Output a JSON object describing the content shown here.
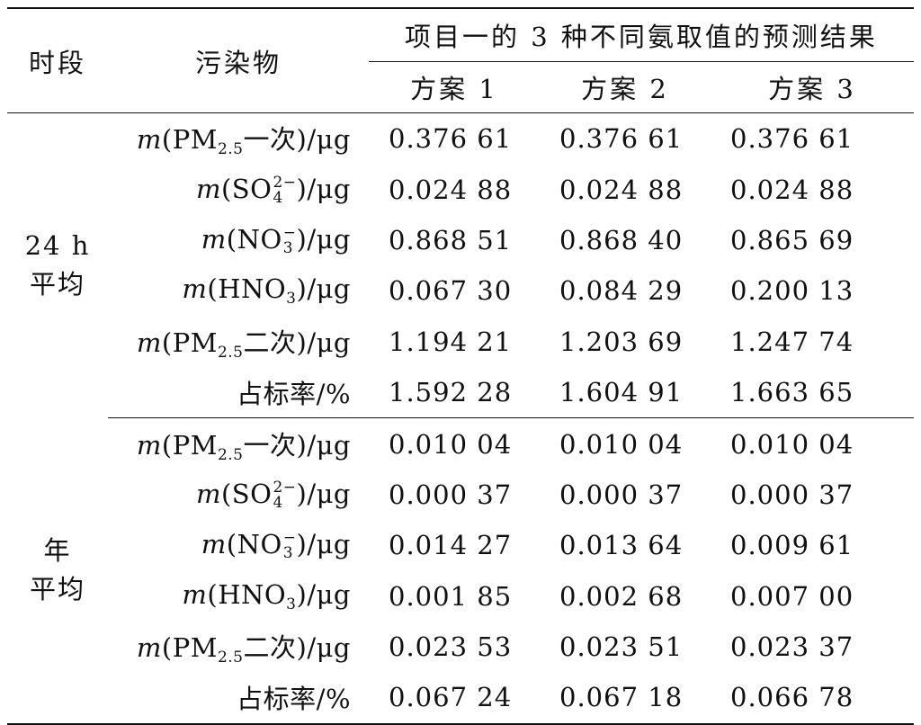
{
  "table": {
    "header": {
      "period": "时段",
      "pollutant": "污染物",
      "group_title": "项目一的 3 种不同氨取值的预测结果",
      "plans": [
        "方案 1",
        "方案 2",
        "方案 3"
      ]
    },
    "groups": [
      {
        "period_lines": [
          "24 h",
          "平均"
        ],
        "rows": [
          {
            "prefix": "m",
            "open": "(PM",
            "sub": "2.5",
            "rest": "一次)/μg",
            "values": [
              "0.376 61",
              "0.376 61",
              "0.376 61"
            ]
          },
          {
            "prefix": "m",
            "open": "(SO",
            "sup": "2−",
            "sub": "4",
            "rest": ")/μg",
            "values": [
              "0.024 88",
              "0.024 88",
              "0.024 88"
            ]
          },
          {
            "prefix": "m",
            "open": "(NO",
            "sup": "−",
            "sub": "3",
            "rest": ")/μg",
            "values": [
              "0.868 51",
              "0.868 40",
              "0.865 69"
            ]
          },
          {
            "prefix": "m",
            "open": "(HNO",
            "sub": "3",
            "rest": ")/μg",
            "values": [
              "0.067 30",
              "0.084 29",
              "0.200 13"
            ]
          },
          {
            "prefix": "m",
            "open": "(PM",
            "sub": "2.5",
            "rest": "二次)/μg",
            "values": [
              "1.194 21",
              "1.203 69",
              "1.247 74"
            ]
          },
          {
            "prefix": "",
            "open": "占标率/%",
            "rest": "",
            "values": [
              "1.592 28",
              "1.604 91",
              "1.663 65"
            ]
          }
        ]
      },
      {
        "period_lines": [
          "年",
          "平均"
        ],
        "rows": [
          {
            "prefix": "m",
            "open": "(PM",
            "sub": "2.5",
            "rest": "一次)/μg",
            "values": [
              "0.010 04",
              "0.010 04",
              "0.010 04"
            ]
          },
          {
            "prefix": "m",
            "open": "(SO",
            "sup": "2−",
            "sub": "4",
            "rest": ")/μg",
            "values": [
              "0.000 37",
              "0.000 37",
              "0.000 37"
            ]
          },
          {
            "prefix": "m",
            "open": "(NO",
            "sup": "−",
            "sub": "3",
            "rest": ")/μg",
            "values": [
              "0.014 27",
              "0.013 64",
              "0.009 61"
            ]
          },
          {
            "prefix": "m",
            "open": "(HNO",
            "sub": "3",
            "rest": ")/μg",
            "values": [
              "0.001 85",
              "0.002 68",
              "0.007 00"
            ]
          },
          {
            "prefix": "m",
            "open": "(PM",
            "sub": "2.5",
            "rest": "二次)/μg",
            "values": [
              "0.023 53",
              "0.023 51",
              "0.023 37"
            ]
          },
          {
            "prefix": "",
            "open": "占标率/%",
            "rest": "",
            "values": [
              "0.067 24",
              "0.067 18",
              "0.066 78"
            ]
          }
        ]
      }
    ]
  }
}
